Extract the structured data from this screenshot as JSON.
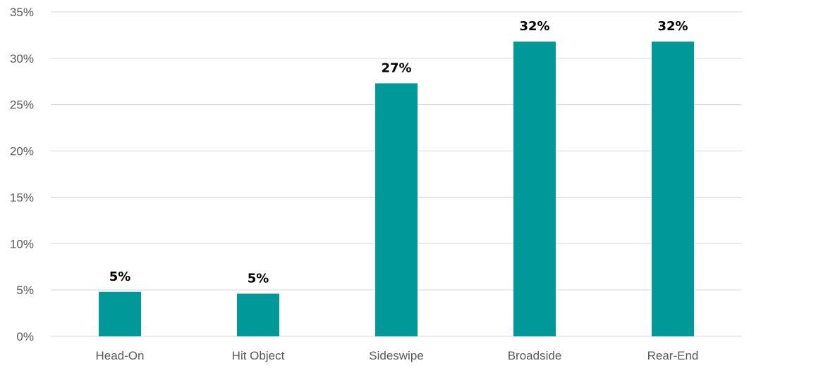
{
  "chart_data": {
    "type": "bar",
    "title": "",
    "xlabel": "",
    "ylabel": "",
    "categories": [
      "Head-On",
      "Hit Object",
      "Sideswipe",
      "Broadside",
      "Rear-End"
    ],
    "values": [
      4.8,
      4.6,
      27.3,
      31.8,
      31.8
    ],
    "data_labels": [
      "5%",
      "5%",
      "27%",
      "32%",
      "32%"
    ],
    "ylim": [
      0,
      35
    ],
    "y_ticks": [
      0,
      5,
      10,
      15,
      20,
      25,
      30,
      35
    ],
    "y_tick_labels": [
      "0%",
      "5%",
      "10%",
      "15%",
      "20%",
      "25%",
      "30%",
      "35%"
    ],
    "grid": true,
    "legend": "none",
    "colors": {
      "bar": "#009999",
      "grid": "#d9d9d9",
      "tick_text": "#595959",
      "data_label_text": "#000000"
    }
  }
}
